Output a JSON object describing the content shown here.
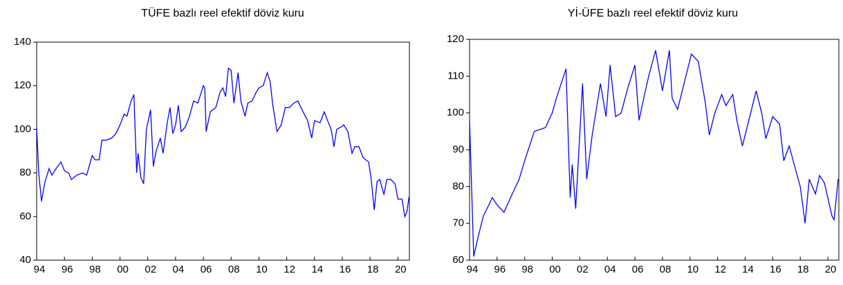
{
  "chart_data": [
    {
      "type": "line",
      "title": "TÜFE bazlı reel efektif döviz kuru",
      "x": [
        1994.0,
        1994.15,
        1994.35,
        1994.6,
        1994.9,
        1995.1,
        1995.4,
        1995.75,
        1996.0,
        1996.3,
        1996.5,
        1996.9,
        1997.3,
        1997.6,
        1998.0,
        1998.2,
        1998.5,
        1998.7,
        1999.0,
        1999.4,
        1999.7,
        2000.0,
        2000.3,
        2000.5,
        2000.8,
        2001.0,
        2001.2,
        2001.3,
        2001.5,
        2001.7,
        2001.9,
        2002.2,
        2002.4,
        2002.6,
        2002.9,
        2003.1,
        2003.4,
        2003.6,
        2003.8,
        2004.0,
        2004.2,
        2004.4,
        2004.7,
        2005.0,
        2005.3,
        2005.6,
        2005.9,
        2006.0,
        2006.1,
        2006.2,
        2006.5,
        2006.9,
        2007.2,
        2007.4,
        2007.6,
        2007.8,
        2008.0,
        2008.2,
        2008.5,
        2008.7,
        2009.0,
        2009.2,
        2009.5,
        2009.8,
        2010.0,
        2010.3,
        2010.6,
        2010.8,
        2011.0,
        2011.3,
        2011.6,
        2011.9,
        2012.2,
        2012.5,
        2012.8,
        2013.1,
        2013.5,
        2013.8,
        2014.0,
        2014.4,
        2014.7,
        2015.0,
        2015.2,
        2015.4,
        2015.6,
        2015.9,
        2016.1,
        2016.4,
        2016.7,
        2016.9,
        2017.2,
        2017.5,
        2017.9,
        2018.1,
        2018.3,
        2018.5,
        2018.7,
        2019.0,
        2019.2,
        2019.5,
        2019.8,
        2020.0,
        2020.3,
        2020.5,
        2020.65,
        2020.8
      ],
      "values": [
        101,
        80,
        67,
        76,
        82,
        79,
        82,
        85,
        81,
        80,
        77,
        79,
        80,
        79,
        88,
        86,
        86,
        95,
        95,
        96,
        98,
        102,
        107,
        106,
        113,
        116,
        80,
        89,
        78,
        75,
        100,
        109,
        83,
        90,
        96,
        89,
        103,
        110,
        98,
        102,
        111,
        99,
        101,
        106,
        113,
        112,
        118,
        120,
        119,
        99,
        108,
        110,
        117,
        119,
        115,
        128,
        127,
        112,
        126,
        113,
        106,
        112,
        113,
        117,
        119,
        120,
        126,
        122,
        111,
        99,
        102,
        110,
        110,
        112,
        113,
        109,
        104,
        96,
        104,
        103,
        108,
        103,
        100,
        92,
        100,
        101,
        102,
        99,
        89,
        92,
        92,
        87,
        85,
        76,
        63,
        76,
        77,
        70,
        77,
        77,
        75,
        68,
        68,
        60,
        62,
        69
      ],
      "color": "#0000ff",
      "xlim": [
        1994,
        2020.83
      ],
      "ylim": [
        40,
        140
      ],
      "xticks": [
        {
          "value": 1994,
          "label": "94"
        },
        {
          "value": 1996,
          "label": "96"
        },
        {
          "value": 1998,
          "label": "98"
        },
        {
          "value": 2000,
          "label": "00"
        },
        {
          "value": 2002,
          "label": "02"
        },
        {
          "value": 2004,
          "label": "04"
        },
        {
          "value": 2006,
          "label": "06"
        },
        {
          "value": 2008,
          "label": "08"
        },
        {
          "value": 2010,
          "label": "10"
        },
        {
          "value": 2012,
          "label": "12"
        },
        {
          "value": 2014,
          "label": "14"
        },
        {
          "value": 2016,
          "label": "16"
        },
        {
          "value": 2018,
          "label": "18"
        },
        {
          "value": 2020,
          "label": "20"
        }
      ],
      "yticks": [
        40,
        60,
        80,
        100,
        120,
        140
      ]
    },
    {
      "type": "line",
      "title": "Yİ-ÜFE bazlı reel efektif döviz kuru",
      "x": [
        1994.0,
        1994.3,
        1994.6,
        1995.0,
        1995.4,
        1995.65,
        1996.0,
        1996.5,
        1997.1,
        1997.6,
        1998.0,
        1998.7,
        1999.5,
        2000.0,
        2000.3,
        2001.0,
        2001.3,
        2001.45,
        2001.7,
        2002.2,
        2002.5,
        2002.9,
        2003.5,
        2003.9,
        2004.2,
        2004.6,
        2005.0,
        2005.5,
        2006.0,
        2006.3,
        2006.7,
        2007.0,
        2007.5,
        2008.0,
        2008.5,
        2008.7,
        2009.1,
        2009.5,
        2010.1,
        2010.6,
        2011.1,
        2011.4,
        2011.8,
        2012.3,
        2012.6,
        2013.1,
        2013.4,
        2013.8,
        2014.4,
        2014.8,
        2015.2,
        2015.5,
        2016.0,
        2016.5,
        2016.8,
        2017.2,
        2017.7,
        2018.0,
        2018.35,
        2018.65,
        2019.1,
        2019.4,
        2019.75,
        2020.3,
        2020.45,
        2020.75
      ],
      "values": [
        98,
        61,
        66,
        72,
        75,
        77,
        75,
        73,
        78,
        82,
        87,
        95,
        96,
        100,
        104,
        112,
        77,
        86,
        74,
        108,
        82,
        94,
        108,
        99,
        113,
        99,
        100,
        107,
        113,
        98,
        105,
        110,
        117,
        106,
        117,
        104,
        101,
        107,
        116,
        114,
        103,
        94,
        100,
        105,
        102,
        105,
        98,
        91,
        100,
        106,
        100,
        93,
        99,
        97,
        87,
        91,
        84,
        80,
        70,
        82,
        78,
        83,
        81,
        72,
        71,
        82
      ],
      "color": "#0000ff",
      "xlim": [
        1994,
        2020.8
      ],
      "ylim": [
        60,
        120
      ],
      "xticks": [
        {
          "value": 1994,
          "label": "94"
        },
        {
          "value": 1996,
          "label": "96"
        },
        {
          "value": 1998,
          "label": "98"
        },
        {
          "value": 2000,
          "label": "00"
        },
        {
          "value": 2002,
          "label": "02"
        },
        {
          "value": 2004,
          "label": "04"
        },
        {
          "value": 2006,
          "label": "06"
        },
        {
          "value": 2008,
          "label": "08"
        },
        {
          "value": 2010,
          "label": "10"
        },
        {
          "value": 2012,
          "label": "12"
        },
        {
          "value": 2014,
          "label": "14"
        },
        {
          "value": 2016,
          "label": "16"
        },
        {
          "value": 2018,
          "label": "18"
        },
        {
          "value": 2020,
          "label": "20"
        }
      ],
      "yticks": [
        60,
        70,
        80,
        90,
        100,
        110,
        120
      ]
    }
  ]
}
